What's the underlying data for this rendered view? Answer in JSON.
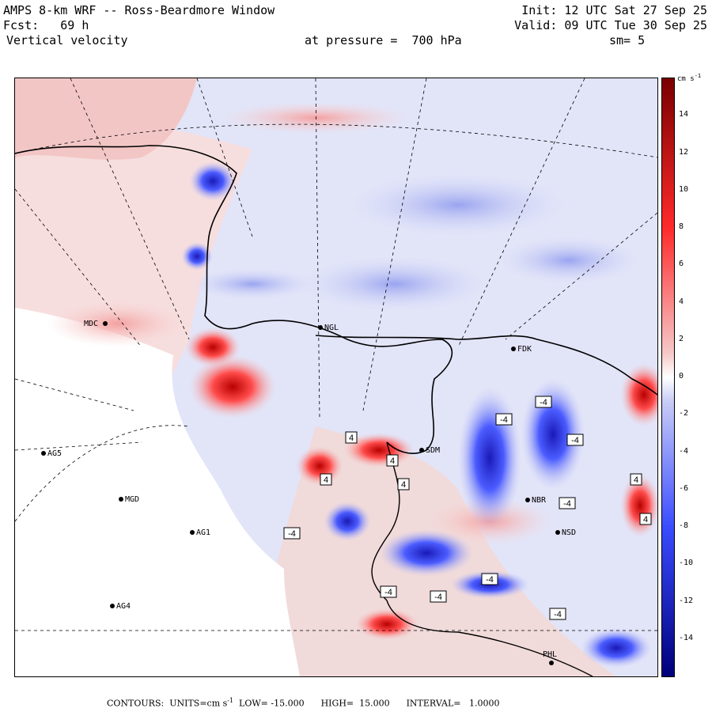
{
  "header": {
    "title": "AMPS 8-km WRF -- Ross-Beardmore Window",
    "init": "Init: 12 UTC Sat 27 Sep 25",
    "fcst": "Fcst:   69 h",
    "valid": "Valid: 09 UTC Tue 30 Sep 25",
    "field": "Vertical velocity",
    "pressure": "at pressure =  700 hPa",
    "smoothing": "sm= 5"
  },
  "colorbar": {
    "unit": "cm s",
    "unit_exp": "-1",
    "ticks": [
      "14",
      "12",
      "10",
      "8",
      "6",
      "4",
      "2",
      "0",
      "-2",
      "-4",
      "-6",
      "-8",
      "-10",
      "-12",
      "-14"
    ],
    "colors": {
      "max": "#7a0000",
      "mid_pos": "#ff2a2a",
      "zero": "#ffffff",
      "mid_neg": "#3a4cff",
      "min": "#00007a"
    }
  },
  "stations": [
    {
      "name": "MDC",
      "side": "left"
    },
    {
      "name": "NGL",
      "side": "right"
    },
    {
      "name": "AG5",
      "side": "right"
    },
    {
      "name": "MGD",
      "side": "right"
    },
    {
      "name": "AG1",
      "side": "right"
    },
    {
      "name": "AG4",
      "side": "right"
    },
    {
      "name": "PHL",
      "side": "left"
    },
    {
      "name": "SDM",
      "side": "right"
    },
    {
      "name": "FDK",
      "side": "right"
    },
    {
      "name": "NBR",
      "side": "right"
    },
    {
      "name": "NSD",
      "side": "right"
    }
  ],
  "contour_labels": [
    "4",
    "4",
    "4",
    "4",
    "-4",
    "-4",
    "-4",
    "-4",
    "-4",
    "-4",
    "-4",
    "-4",
    "-4",
    "4",
    "4"
  ],
  "footer": {
    "contours": "CONTOURS:  UNITS=cm s",
    "units_exp": "-1",
    "low": "  LOW= -15.000",
    "high": "      HIGH=  15.000",
    "interval": "      INTERVAL=   1.0000"
  }
}
